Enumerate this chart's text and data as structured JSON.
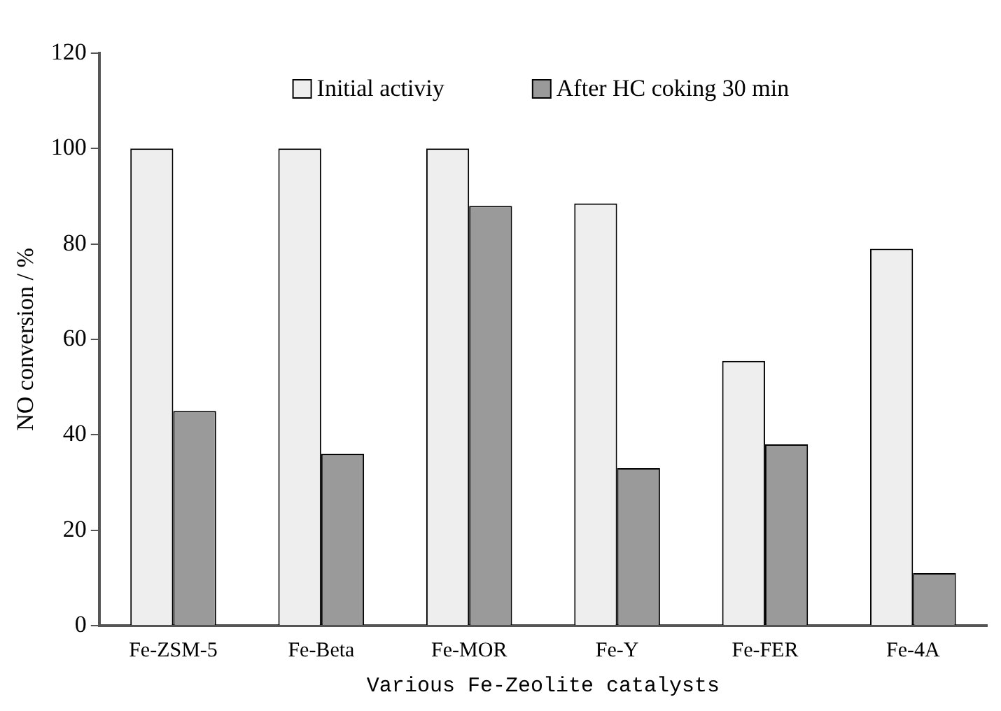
{
  "chart_data": {
    "type": "bar",
    "xlabel": "Various Fe-Zeolite catalysts",
    "ylabel": "NO conversion / %",
    "categories": [
      "Fe-ZSM-5",
      "Fe-Beta",
      "Fe-MOR",
      "Fe-Y",
      "Fe-FER",
      "Fe-4A"
    ],
    "series": [
      {
        "name": "Initial activiy",
        "color": "#eeeeee",
        "values": [
          100,
          100,
          100,
          88.5,
          55.5,
          79
        ]
      },
      {
        "name": "After HC coking 30 min",
        "color": "#9a9a9a",
        "values": [
          45,
          36,
          88,
          33,
          38,
          11
        ]
      }
    ],
    "ylim": [
      0,
      120
    ],
    "yticks": [
      0,
      20,
      40,
      60,
      80,
      100,
      120
    ],
    "grid": false,
    "legend": "top"
  }
}
